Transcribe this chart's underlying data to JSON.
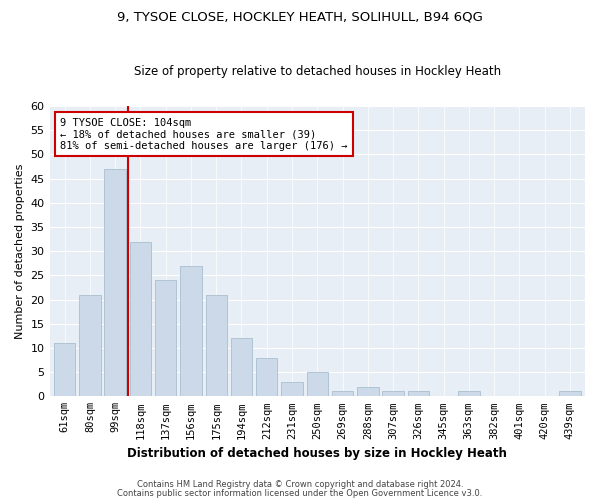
{
  "title1": "9, TYSOE CLOSE, HOCKLEY HEATH, SOLIHULL, B94 6QG",
  "title2": "Size of property relative to detached houses in Hockley Heath",
  "xlabel": "Distribution of detached houses by size in Hockley Heath",
  "ylabel": "Number of detached properties",
  "categories": [
    "61sqm",
    "80sqm",
    "99sqm",
    "118sqm",
    "137sqm",
    "156sqm",
    "175sqm",
    "194sqm",
    "212sqm",
    "231sqm",
    "250sqm",
    "269sqm",
    "288sqm",
    "307sqm",
    "326sqm",
    "345sqm",
    "363sqm",
    "382sqm",
    "401sqm",
    "420sqm",
    "439sqm"
  ],
  "values": [
    11,
    21,
    47,
    32,
    24,
    27,
    21,
    12,
    8,
    3,
    5,
    1,
    2,
    1,
    1,
    0,
    1,
    0,
    0,
    0,
    1
  ],
  "bar_color": "#ccd9e8",
  "bar_edge_color": "#a8bfd0",
  "subject_line_color": "#cc0000",
  "annotation_line1": "9 TYSOE CLOSE: 104sqm",
  "annotation_line2": "← 18% of detached houses are smaller (39)",
  "annotation_line3": "81% of semi-detached houses are larger (176) →",
  "annotation_box_color": "#ffffff",
  "annotation_box_edge": "#cc0000",
  "ylim": [
    0,
    60
  ],
  "yticks": [
    0,
    5,
    10,
    15,
    20,
    25,
    30,
    35,
    40,
    45,
    50,
    55,
    60
  ],
  "footer1": "Contains HM Land Registry data © Crown copyright and database right 2024.",
  "footer2": "Contains public sector information licensed under the Open Government Licence v3.0.",
  "plot_background": "#e8eef5",
  "grid_color": "#ffffff",
  "title1_fontsize": 9.5,
  "title2_fontsize": 8.5,
  "xlabel_fontsize": 8.5,
  "ylabel_fontsize": 8.0,
  "tick_fontsize": 7.5,
  "annot_fontsize": 7.5,
  "footer_fontsize": 6.0
}
